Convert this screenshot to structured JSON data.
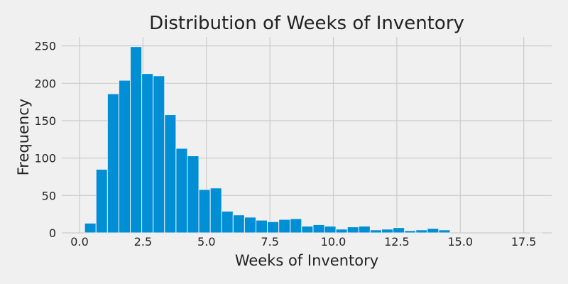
{
  "chart_data": {
    "type": "bar",
    "subtype": "histogram",
    "title": "Distribution of Weeks of Inventory",
    "xlabel": "Weeks of Inventory",
    "ylabel": "Frequency",
    "xlim": [
      -0.7,
      18.6
    ],
    "ylim": [
      0,
      262
    ],
    "xticks": [
      0.0,
      2.5,
      5.0,
      7.5,
      10.0,
      12.5,
      15.0,
      17.5
    ],
    "xtick_labels": [
      "0.0",
      "2.5",
      "5.0",
      "7.5",
      "10.0",
      "12.5",
      "15.0",
      "17.5"
    ],
    "yticks": [
      0,
      50,
      100,
      150,
      200,
      250
    ],
    "ytick_labels": [
      "0",
      "50",
      "100",
      "150",
      "200",
      "250"
    ],
    "grid": true,
    "bar_color": "#008fd5",
    "background_color": "#f0f0f0",
    "bins": [
      {
        "x0": 0.2,
        "x1": 0.65,
        "count": 13
      },
      {
        "x0": 0.65,
        "x1": 1.1,
        "count": 85
      },
      {
        "x0": 1.1,
        "x1": 1.55,
        "count": 186
      },
      {
        "x0": 1.55,
        "x1": 2.0,
        "count": 204
      },
      {
        "x0": 2.0,
        "x1": 2.45,
        "count": 249
      },
      {
        "x0": 2.45,
        "x1": 2.9,
        "count": 213
      },
      {
        "x0": 2.9,
        "x1": 3.35,
        "count": 210
      },
      {
        "x0": 3.35,
        "x1": 3.8,
        "count": 158
      },
      {
        "x0": 3.8,
        "x1": 4.25,
        "count": 113
      },
      {
        "x0": 4.25,
        "x1": 4.7,
        "count": 103
      },
      {
        "x0": 4.7,
        "x1": 5.15,
        "count": 58
      },
      {
        "x0": 5.15,
        "x1": 5.6,
        "count": 60
      },
      {
        "x0": 5.6,
        "x1": 6.05,
        "count": 29
      },
      {
        "x0": 6.05,
        "x1": 6.5,
        "count": 24
      },
      {
        "x0": 6.5,
        "x1": 6.95,
        "count": 21
      },
      {
        "x0": 6.95,
        "x1": 7.4,
        "count": 17
      },
      {
        "x0": 7.4,
        "x1": 7.85,
        "count": 15
      },
      {
        "x0": 7.85,
        "x1": 8.3,
        "count": 18
      },
      {
        "x0": 8.3,
        "x1": 8.75,
        "count": 19
      },
      {
        "x0": 8.75,
        "x1": 9.2,
        "count": 9
      },
      {
        "x0": 9.2,
        "x1": 9.65,
        "count": 11
      },
      {
        "x0": 9.65,
        "x1": 10.1,
        "count": 9
      },
      {
        "x0": 10.1,
        "x1": 10.55,
        "count": 5
      },
      {
        "x0": 10.55,
        "x1": 11.0,
        "count": 8
      },
      {
        "x0": 11.0,
        "x1": 11.45,
        "count": 9
      },
      {
        "x0": 11.45,
        "x1": 11.9,
        "count": 4
      },
      {
        "x0": 11.9,
        "x1": 12.35,
        "count": 5
      },
      {
        "x0": 12.35,
        "x1": 12.8,
        "count": 7
      },
      {
        "x0": 12.8,
        "x1": 13.25,
        "count": 3
      },
      {
        "x0": 13.25,
        "x1": 13.7,
        "count": 4
      },
      {
        "x0": 13.7,
        "x1": 14.15,
        "count": 6
      },
      {
        "x0": 14.15,
        "x1": 14.6,
        "count": 4
      },
      {
        "x0": 14.6,
        "x1": 15.05,
        "count": 0
      },
      {
        "x0": 15.05,
        "x1": 15.5,
        "count": 0
      },
      {
        "x0": 15.5,
        "x1": 15.95,
        "count": 0
      },
      {
        "x0": 15.95,
        "x1": 16.4,
        "count": 0
      },
      {
        "x0": 16.4,
        "x1": 16.85,
        "count": 0
      },
      {
        "x0": 16.85,
        "x1": 17.3,
        "count": 0
      },
      {
        "x0": 17.3,
        "x1": 17.75,
        "count": 0
      },
      {
        "x0": 17.75,
        "x1": 18.2,
        "count": 1
      }
    ]
  }
}
